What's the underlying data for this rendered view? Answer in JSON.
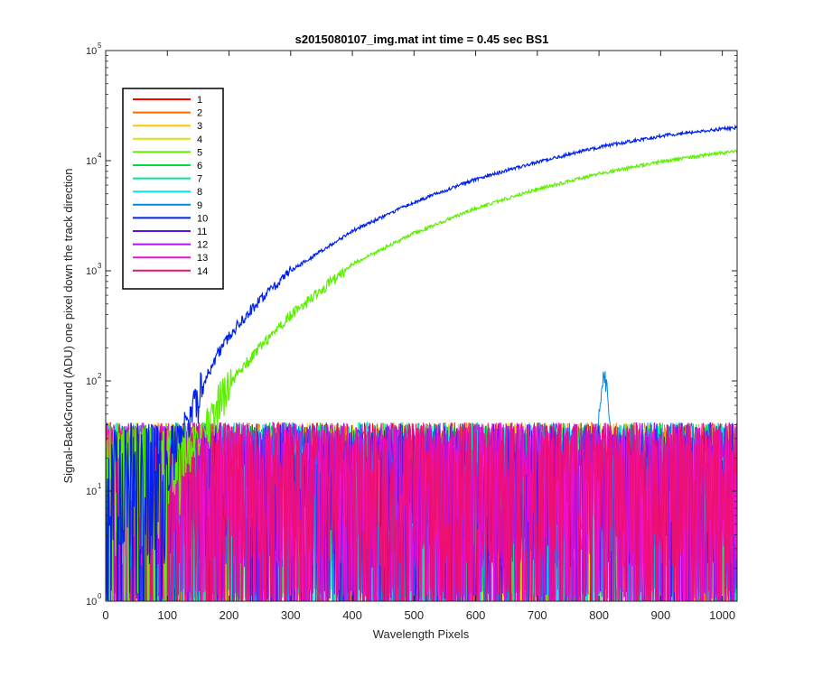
{
  "chart_data": {
    "type": "line",
    "title": "s2015080107_img.mat int time = 0.45 sec   BS1",
    "xlabel": "Wavelength Pixels",
    "ylabel": "Signal-BackGround (ADU) one pixel down the track direction",
    "xlim": [
      0,
      1024
    ],
    "ylim": [
      1,
      100000
    ],
    "yscale": "log",
    "grid": false,
    "legend_position": "top-left",
    "x_ticks": [
      0,
      100,
      200,
      300,
      400,
      500,
      600,
      700,
      800,
      900,
      1000
    ],
    "y_ticks": [
      1,
      10,
      100,
      1000,
      10000,
      100000
    ],
    "y_tick_labels": [
      {
        "base": "10",
        "exp": "0"
      },
      {
        "base": "10",
        "exp": "1"
      },
      {
        "base": "10",
        "exp": "2"
      },
      {
        "base": "10",
        "exp": "3"
      },
      {
        "base": "10",
        "exp": "4"
      },
      {
        "base": "10",
        "exp": "5"
      }
    ],
    "series": [
      {
        "name": "1",
        "color": "#ff0000",
        "kind": "noise"
      },
      {
        "name": "2",
        "color": "#ff6a00",
        "kind": "noise"
      },
      {
        "name": "3",
        "color": "#ffc800",
        "kind": "noise"
      },
      {
        "name": "4",
        "color": "#d8e600",
        "kind": "noise"
      },
      {
        "name": "5",
        "color": "#5cf000",
        "kind": "signal",
        "x": [
          100,
          120,
          140,
          160,
          180,
          200,
          250,
          300,
          400,
          500,
          600,
          700,
          800,
          900,
          1000,
          1024
        ],
        "y": [
          5,
          10,
          18,
          35,
          60,
          95,
          200,
          400,
          1150,
          2200,
          3700,
          5500,
          7600,
          9800,
          11800,
          12200
        ]
      },
      {
        "name": "6",
        "color": "#00dd44",
        "kind": "noise"
      },
      {
        "name": "7",
        "color": "#00e6a0",
        "kind": "noise"
      },
      {
        "name": "8",
        "color": "#00e8f0",
        "kind": "noise"
      },
      {
        "name": "9",
        "color": "#0088e8",
        "kind": "noise",
        "peak_x": 808,
        "peak_y": 100
      },
      {
        "name": "10",
        "color": "#0022ee",
        "kind": "signal",
        "x": [
          100,
          120,
          140,
          160,
          180,
          200,
          250,
          300,
          400,
          500,
          600,
          700,
          800,
          900,
          1000,
          1024
        ],
        "y": [
          12,
          28,
          55,
          100,
          170,
          260,
          550,
          1000,
          2300,
          4200,
          6800,
          9700,
          13300,
          16800,
          19500,
          20000
        ]
      },
      {
        "name": "11",
        "color": "#5510ee",
        "kind": "noise"
      },
      {
        "name": "12",
        "color": "#b010ee",
        "kind": "noise"
      },
      {
        "name": "13",
        "color": "#ee10cc",
        "kind": "noise"
      },
      {
        "name": "14",
        "color": "#ee1070",
        "kind": "noise"
      }
    ]
  }
}
